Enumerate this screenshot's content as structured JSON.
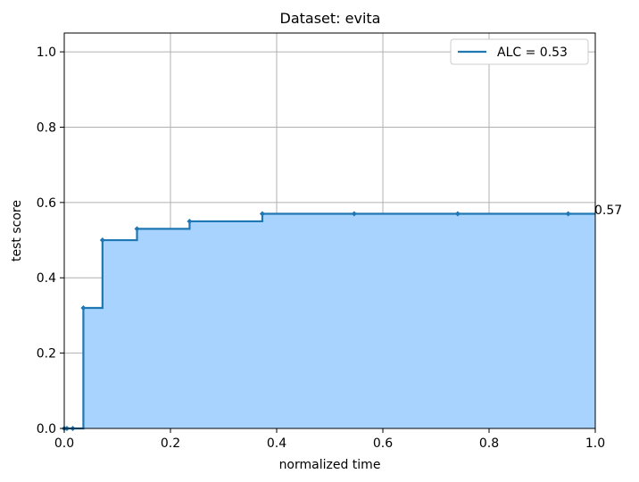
{
  "chart_data": {
    "type": "line",
    "step": "post",
    "title": "Dataset: evita",
    "xlabel": "normalized time",
    "ylabel": "test score",
    "xlim": [
      0.0,
      1.0
    ],
    "ylim": [
      0.0,
      1.05
    ],
    "grid": true,
    "x_ticks": [
      "0.0",
      "0.2",
      "0.4",
      "0.6",
      "0.8",
      "1.0"
    ],
    "y_ticks": [
      "0.0",
      "0.2",
      "0.4",
      "0.6",
      "0.8",
      "1.0"
    ],
    "legend": {
      "position": "top-right",
      "label": "ALC = 0.53"
    },
    "end_annotation": "0.57",
    "series": [
      {
        "name": "ALC = 0.53",
        "color": "#1f77b4",
        "fill_color": "#a8d3ff",
        "x": [
          0.0,
          0.005,
          0.016,
          0.036,
          0.072,
          0.137,
          0.236,
          0.373,
          0.546,
          0.741,
          0.949,
          1.0
        ],
        "y": [
          0.0,
          0.0,
          0.0,
          0.32,
          0.5,
          0.53,
          0.55,
          0.57,
          0.57,
          0.57,
          0.57,
          0.57
        ]
      }
    ]
  }
}
